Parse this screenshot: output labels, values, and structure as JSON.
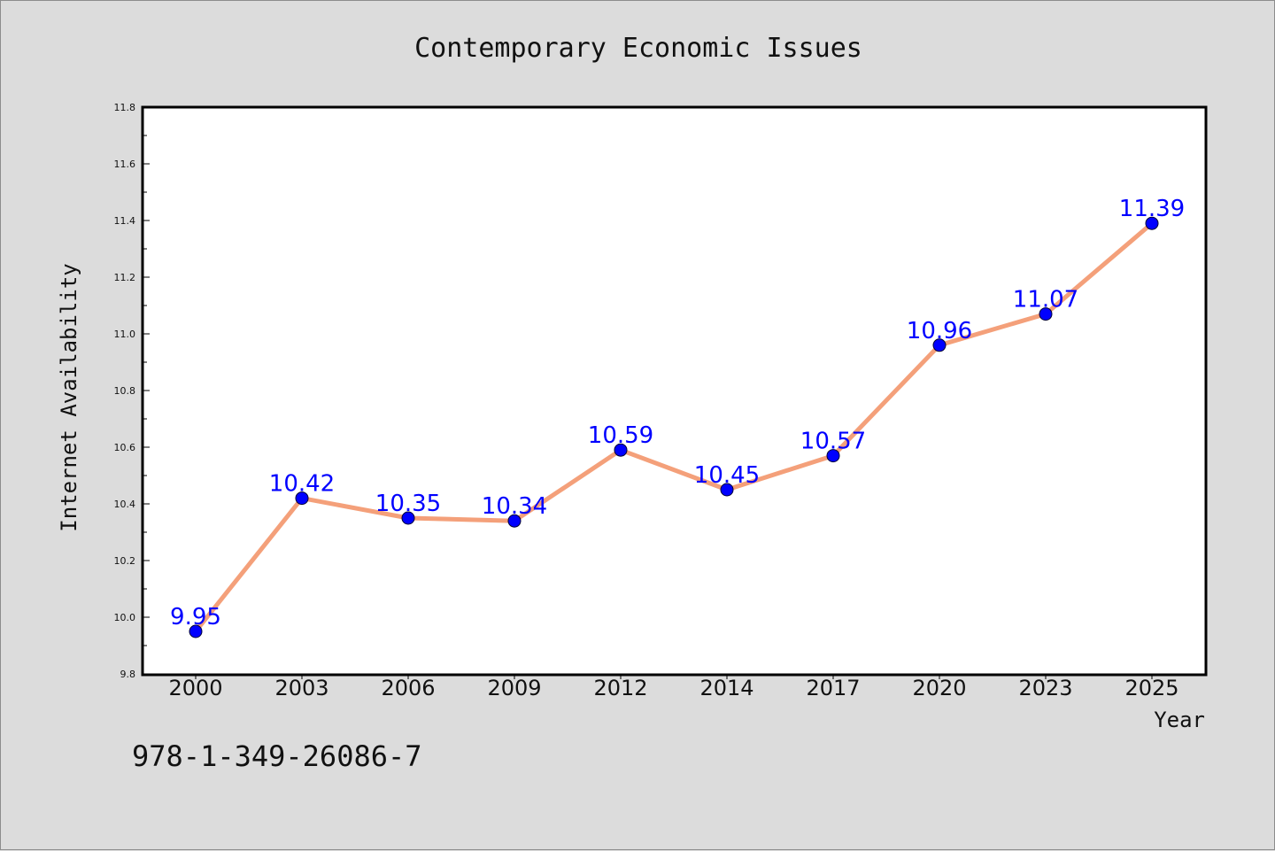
{
  "chart_data": {
    "type": "line",
    "title": "Contemporary Economic Issues",
    "xlabel": "Year",
    "ylabel": "Internet Availability",
    "categories": [
      "2000",
      "2003",
      "2006",
      "2009",
      "2012",
      "2014",
      "2017",
      "2020",
      "2023",
      "2025"
    ],
    "values": [
      9.95,
      10.42,
      10.35,
      10.34,
      10.59,
      10.45,
      10.57,
      10.96,
      11.07,
      11.39
    ],
    "data_labels": [
      "9.95",
      "10.42",
      "10.35",
      "10.34",
      "10.59",
      "10.45",
      "10.57",
      "10.96",
      "11.07",
      "11.39"
    ],
    "ylim": [
      9.8,
      11.8
    ],
    "yticks": [
      "9.8",
      "10.0",
      "10.2",
      "10.4",
      "10.6",
      "10.8",
      "11.0",
      "11.2",
      "11.4",
      "11.6",
      "11.8"
    ],
    "grid": false,
    "legend": "none",
    "colors": {
      "line": "#f4a07a",
      "marker": "#0000ff",
      "label": "#0000ff",
      "background": "#dcdcdc",
      "plot_background": "#ffffff"
    }
  },
  "footer": {
    "isbn": "978-1-349-26086-7"
  }
}
